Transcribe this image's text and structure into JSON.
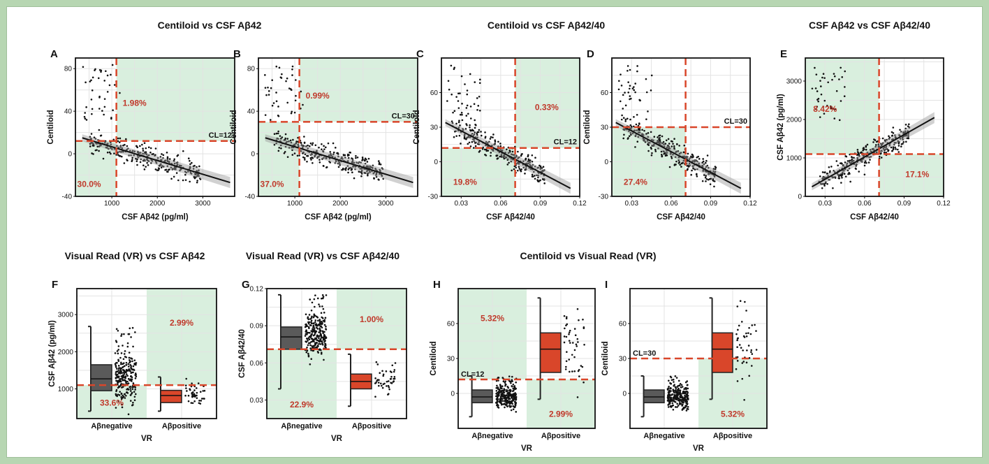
{
  "colors": {
    "outer_border": "#b7d6b2",
    "shade": "#d9efde",
    "threshold": "#d9462a",
    "annotation": "#c0392b",
    "negative_box": "#5a5a5a",
    "positive_box": "#d9462a",
    "grid": "#e3e3e3"
  },
  "group_titles": {
    "row1_a": "Centiloid vs CSF Aβ42",
    "row1_b": "Centiloid  vs CSF Aβ42/40",
    "row1_c": "CSF Aβ42 vs CSF Aβ42/40",
    "row2_a": "Visual Read (VR) vs CSF Aβ42",
    "row2_b": "Visual Read (VR) vs CSF Aβ42/40",
    "row2_c": "Centiloid  vs Visual Read (VR)"
  },
  "chart_data": [
    {
      "panel": "A",
      "type": "scatter",
      "xlabel": "CSF Aβ42 (pg/ml)",
      "ylabel": "Centiloid",
      "xlim": [
        200,
        3700
      ],
      "ylim": [
        -40,
        90
      ],
      "xticks": [
        1000,
        2000,
        3000
      ],
      "yticks": [
        -40,
        0,
        40,
        80
      ],
      "xticklabels": [
        "1000",
        "2000",
        "3000"
      ],
      "yticklabels": [
        "-40",
        "0",
        "40",
        "80"
      ],
      "cutoff_x": 1100,
      "cutoff_y": 12,
      "cutoff_label": "CL=12",
      "regression": {
        "x": [
          350,
          3600
        ],
        "y": [
          15,
          -27
        ]
      },
      "shaded_regions": [
        {
          "x": [
            1100,
            3700
          ],
          "y": [
            12,
            90
          ]
        },
        {
          "x": [
            200,
            1100
          ],
          "y": [
            -40,
            12
          ]
        }
      ],
      "annotations": [
        {
          "text": "1.98%",
          "x": 1500,
          "y": 45
        },
        {
          "text": "30.0%",
          "x": 500,
          "y": -31
        }
      ],
      "points_summary": "dense cloud 400–2600 pg/ml, centiloid -30 to 20; few high-centiloid points below 1100"
    },
    {
      "panel": "B",
      "type": "scatter",
      "xlabel": "CSF Aβ42 (pg/ml)",
      "ylabel": "Centiloid",
      "xlim": [
        200,
        3700
      ],
      "ylim": [
        -40,
        90
      ],
      "xticks": [
        1000,
        2000,
        3000
      ],
      "yticks": [
        -40,
        0,
        40,
        80
      ],
      "xticklabels": [
        "1000",
        "2000",
        "3000"
      ],
      "yticklabels": [
        "-40",
        "0",
        "40",
        "80"
      ],
      "cutoff_x": 1100,
      "cutoff_y": 30,
      "cutoff_label": "CL=30",
      "regression": {
        "x": [
          350,
          3600
        ],
        "y": [
          15,
          -27
        ]
      },
      "shaded_regions": [
        {
          "x": [
            1100,
            3700
          ],
          "y": [
            30,
            90
          ]
        },
        {
          "x": [
            200,
            1100
          ],
          "y": [
            -40,
            30
          ]
        }
      ],
      "annotations": [
        {
          "text": "0.99%",
          "x": 1500,
          "y": 52
        },
        {
          "text": "37.0%",
          "x": 500,
          "y": -31
        }
      ]
    },
    {
      "panel": "C",
      "type": "scatter",
      "xlabel": "CSF Aβ42/40",
      "ylabel": "Centiloid",
      "xlim": [
        0.015,
        0.12
      ],
      "ylim": [
        -30,
        90
      ],
      "xticks": [
        0.03,
        0.06,
        0.09,
        0.12
      ],
      "yticks": [
        -30,
        0,
        30,
        60
      ],
      "xticklabels": [
        "0.03",
        "0.06",
        "0.09",
        "0.12"
      ],
      "yticklabels": [
        "-30",
        "0",
        "30",
        "60"
      ],
      "cutoff_x": 0.071,
      "cutoff_y": 12,
      "cutoff_label": "CL=12",
      "regression": {
        "x": [
          0.018,
          0.113
        ],
        "y": [
          34,
          -23
        ]
      },
      "shaded_regions": [
        {
          "x": [
            0.071,
            0.12
          ],
          "y": [
            12,
            90
          ]
        },
        {
          "x": [
            0.015,
            0.071
          ],
          "y": [
            -30,
            12
          ]
        }
      ],
      "annotations": [
        {
          "text": "0.33%",
          "x": 0.095,
          "y": 45
        },
        {
          "text": "19.8%",
          "x": 0.033,
          "y": -20
        }
      ]
    },
    {
      "panel": "D",
      "type": "scatter",
      "xlabel": "CSF Aβ42/40",
      "ylabel": "Centiloid",
      "xlim": [
        0.015,
        0.12
      ],
      "ylim": [
        -30,
        90
      ],
      "xticks": [
        0.03,
        0.06,
        0.09,
        0.12
      ],
      "yticks": [
        -30,
        0,
        30,
        60
      ],
      "xticklabels": [
        "0.03",
        "0.06",
        "0.09",
        "0.12"
      ],
      "yticklabels": [
        "-30",
        "0",
        "30",
        "60"
      ],
      "cutoff_x": 0.071,
      "cutoff_y": 30,
      "cutoff_label": "CL=30",
      "regression": {
        "x": [
          0.018,
          0.113
        ],
        "y": [
          34,
          -23
        ]
      },
      "shaded_regions": [
        {
          "x": [
            0.015,
            0.071
          ],
          "y": [
            -30,
            30
          ]
        }
      ],
      "annotations": [
        {
          "text": "27.4%",
          "x": 0.033,
          "y": -20
        }
      ]
    },
    {
      "panel": "E",
      "type": "scatter",
      "xlabel": "CSF Aβ42/40",
      "ylabel": "CSF Aβ42 (pg/ml)",
      "xlim": [
        0.015,
        0.12
      ],
      "ylim": [
        0,
        3600
      ],
      "xticks": [
        0.03,
        0.06,
        0.09,
        0.12
      ],
      "yticks": [
        0,
        1000,
        2000,
        3000
      ],
      "xticklabels": [
        "0.03",
        "0.06",
        "0.09",
        "0.12"
      ],
      "yticklabels": [
        "0",
        "1000",
        "2000",
        "3000"
      ],
      "cutoff_x": 0.071,
      "cutoff_y": 1100,
      "cutoff_label": "",
      "regression": {
        "x": [
          0.02,
          0.113
        ],
        "y": [
          250,
          2050
        ]
      },
      "shaded_regions": [
        {
          "x": [
            0.015,
            0.071
          ],
          "y": [
            1100,
            3600
          ]
        },
        {
          "x": [
            0.071,
            0.12
          ],
          "y": [
            0,
            1100
          ]
        }
      ],
      "annotations": [
        {
          "text": "8.42%",
          "x": 0.03,
          "y": 2200
        },
        {
          "text": "17.1%",
          "x": 0.1,
          "y": 500
        }
      ]
    },
    {
      "panel": "F",
      "type": "box",
      "xlabel": "VR",
      "ylabel": "CSF Aβ42 (pg/ml)",
      "categories": [
        "Aβnegative",
        "Aβpositive"
      ],
      "ylim": [
        200,
        3700
      ],
      "yticks": [
        1000,
        2000,
        3000
      ],
      "yticklabels": [
        "1000",
        "2000",
        "3000"
      ],
      "cutoff_y": 1100,
      "cutoff_label": "",
      "boxes": [
        {
          "q1": 950,
          "median": 1270,
          "q3": 1650,
          "whisker_low": 400,
          "whisker_high": 2680
        },
        {
          "q1": 630,
          "median": 820,
          "q3": 960,
          "whisker_low": 400,
          "whisker_high": 1320
        }
      ],
      "shaded_regions": [
        {
          "cat": 1,
          "y": [
            1100,
            3700
          ]
        },
        {
          "cat": 0,
          "y": [
            200,
            1100
          ]
        }
      ],
      "annotations": [
        {
          "text": "2.99%",
          "cat": 1,
          "y": 2700
        },
        {
          "text": "33.6%",
          "cat": 0,
          "y": 550
        }
      ]
    },
    {
      "panel": "G",
      "type": "box",
      "xlabel": "VR",
      "ylabel": "CSF Aβ42/40",
      "categories": [
        "Aβnegative",
        "Aβpositive"
      ],
      "ylim": [
        0.015,
        0.12
      ],
      "yticks": [
        0.03,
        0.06,
        0.09,
        0.12
      ],
      "yticklabels": [
        "0.03",
        "0.06",
        "0.09",
        "0.12"
      ],
      "cutoff_y": 0.071,
      "cutoff_label": "",
      "boxes": [
        {
          "q1": 0.071,
          "median": 0.081,
          "q3": 0.089,
          "whisker_low": 0.039,
          "whisker_high": 0.115
        },
        {
          "q1": 0.039,
          "median": 0.045,
          "q3": 0.051,
          "whisker_low": 0.025,
          "whisker_high": 0.067
        }
      ],
      "shaded_regions": [
        {
          "cat": 1,
          "y": [
            0.071,
            0.12
          ]
        },
        {
          "cat": 0,
          "y": [
            0.015,
            0.071
          ]
        }
      ],
      "annotations": [
        {
          "text": "1.00%",
          "cat": 1,
          "y": 0.093
        },
        {
          "text": "22.9%",
          "cat": 0,
          "y": 0.024
        }
      ]
    },
    {
      "panel": "H",
      "type": "box",
      "xlabel": "VR",
      "ylabel": "Centiloid",
      "categories": [
        "Aβnegative",
        "Aβpositive"
      ],
      "ylim": [
        -30,
        90
      ],
      "yticks": [
        0,
        30,
        60
      ],
      "yticklabels": [
        "0",
        "30",
        "60"
      ],
      "cutoff_y": 12,
      "cutoff_label": "CL=12",
      "boxes": [
        {
          "q1": -8,
          "median": -3,
          "q3": 3,
          "whisker_low": -20,
          "whisker_high": 15
        },
        {
          "q1": 18,
          "median": 38,
          "q3": 52,
          "whisker_low": -5,
          "whisker_high": 82
        }
      ],
      "shaded_regions": [
        {
          "cat": 0,
          "y": [
            12,
            90
          ]
        },
        {
          "cat": 1,
          "y": [
            -30,
            12
          ]
        }
      ],
      "annotations": [
        {
          "text": "5.32%",
          "cat": 0,
          "y": 62
        },
        {
          "text": "2.99%",
          "cat": 1,
          "y": -20
        }
      ]
    },
    {
      "panel": "I",
      "type": "box",
      "xlabel": "VR",
      "ylabel": "Centiloid",
      "categories": [
        "Aβnegative",
        "Aβpositive"
      ],
      "ylim": [
        -30,
        90
      ],
      "yticks": [
        0,
        30,
        60
      ],
      "yticklabels": [
        "0",
        "30",
        "60"
      ],
      "cutoff_y": 30,
      "cutoff_label": "CL=30",
      "boxes": [
        {
          "q1": -8,
          "median": -3,
          "q3": 3,
          "whisker_low": -20,
          "whisker_high": 15
        },
        {
          "q1": 18,
          "median": 38,
          "q3": 52,
          "whisker_low": -5,
          "whisker_high": 82
        }
      ],
      "shaded_regions": [
        {
          "cat": 1,
          "y": [
            -30,
            30
          ]
        }
      ],
      "annotations": [
        {
          "text": "5.32%",
          "cat": 1,
          "y": -20
        }
      ]
    }
  ]
}
